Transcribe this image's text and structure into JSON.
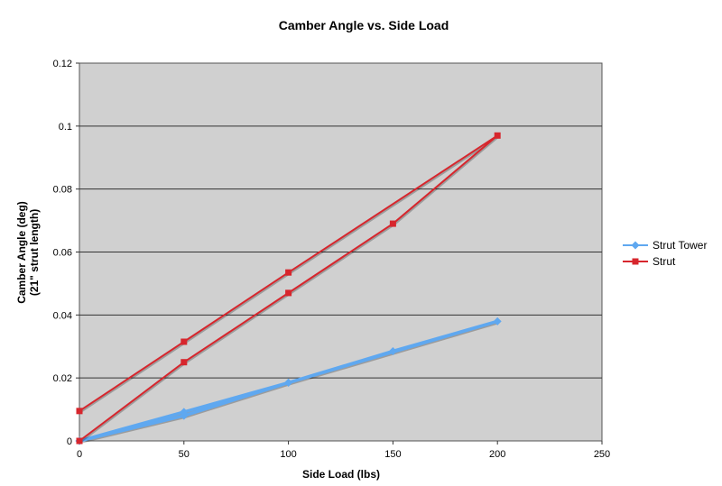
{
  "chart_data": {
    "type": "line",
    "title": "Camber Angle vs. Side Load",
    "xlabel": "Side Load (lbs)",
    "ylabel": [
      "Camber Angle (deg)",
      "(21\" strut length)"
    ],
    "xlim": [
      0,
      250
    ],
    "ylim": [
      0,
      0.12
    ],
    "xticks": [
      "0",
      "50",
      "100",
      "150",
      "200",
      "250"
    ],
    "yticks": [
      "0",
      "0.02",
      "0.04",
      "0.06",
      "0.08",
      "0.1",
      "0.12"
    ],
    "grid": "horizontal",
    "legend": "right",
    "series": [
      {
        "name": "Strut Tower",
        "color": "#5fa8f0",
        "marker": "diamond",
        "x": [
          0,
          50,
          100,
          150,
          200,
          100,
          50,
          0
        ],
        "y": [
          0,
          0.008,
          0.0185,
          0.0285,
          0.038,
          0.0185,
          0.0092,
          0
        ]
      },
      {
        "name": "Strut",
        "color": "#d7262d",
        "marker": "square",
        "x": [
          0,
          50,
          100,
          150,
          200,
          100,
          50,
          0
        ],
        "y": [
          0,
          0.025,
          0.047,
          0.069,
          0.097,
          0.0535,
          0.0315,
          0.0095
        ]
      }
    ]
  }
}
